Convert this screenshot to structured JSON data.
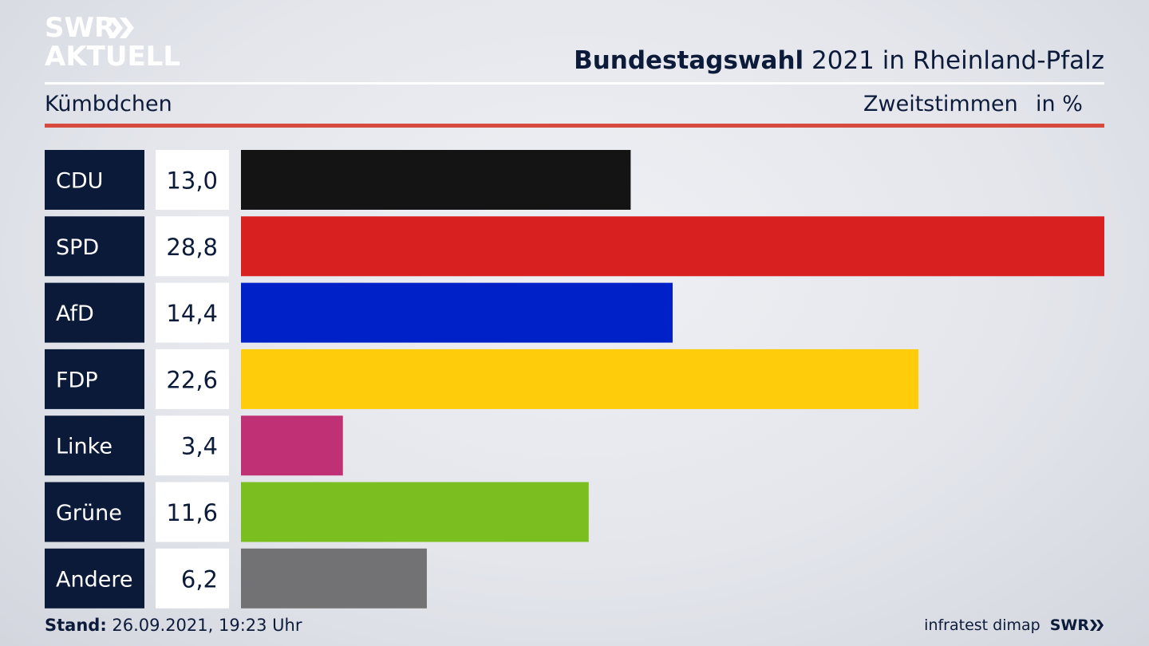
{
  "brand": {
    "line1": "SWR",
    "line2": "AKTUELL",
    "logo_color": "#ffffff",
    "logo_arrow_icon": "double-chevron-right-icon"
  },
  "header": {
    "title_bold": "Bundestagswahl",
    "title_rest": " 2021 in Rheinland-Pfalz",
    "location": "Kümbdchen",
    "subtitle": "Zweitstimmen",
    "unit": "in %"
  },
  "chart_data": {
    "type": "bar",
    "orientation": "horizontal",
    "categories": [
      "CDU",
      "SPD",
      "AfD",
      "FDP",
      "Linke",
      "Grüne",
      "Andere"
    ],
    "values": [
      13.0,
      28.8,
      14.4,
      22.6,
      3.4,
      11.6,
      6.2
    ],
    "value_labels": [
      "13,0",
      "28,8",
      "14,4",
      "22,6",
      "3,4",
      "11,6",
      "6,2"
    ],
    "colors": [
      "#141414",
      "#d92020",
      "#0021c8",
      "#fecc0a",
      "#bf3074",
      "#7abf1f",
      "#727274"
    ],
    "xlim": [
      0,
      28.8
    ],
    "label_box_color": "#0c1a3a",
    "value_box_color": "#ffffff",
    "grid": false,
    "legend": "none"
  },
  "footer": {
    "stand_label": "Stand:",
    "stand_value": " 26.09.2021, 19:23 Uhr",
    "source": "infratest dimap",
    "brand": "SWR"
  }
}
